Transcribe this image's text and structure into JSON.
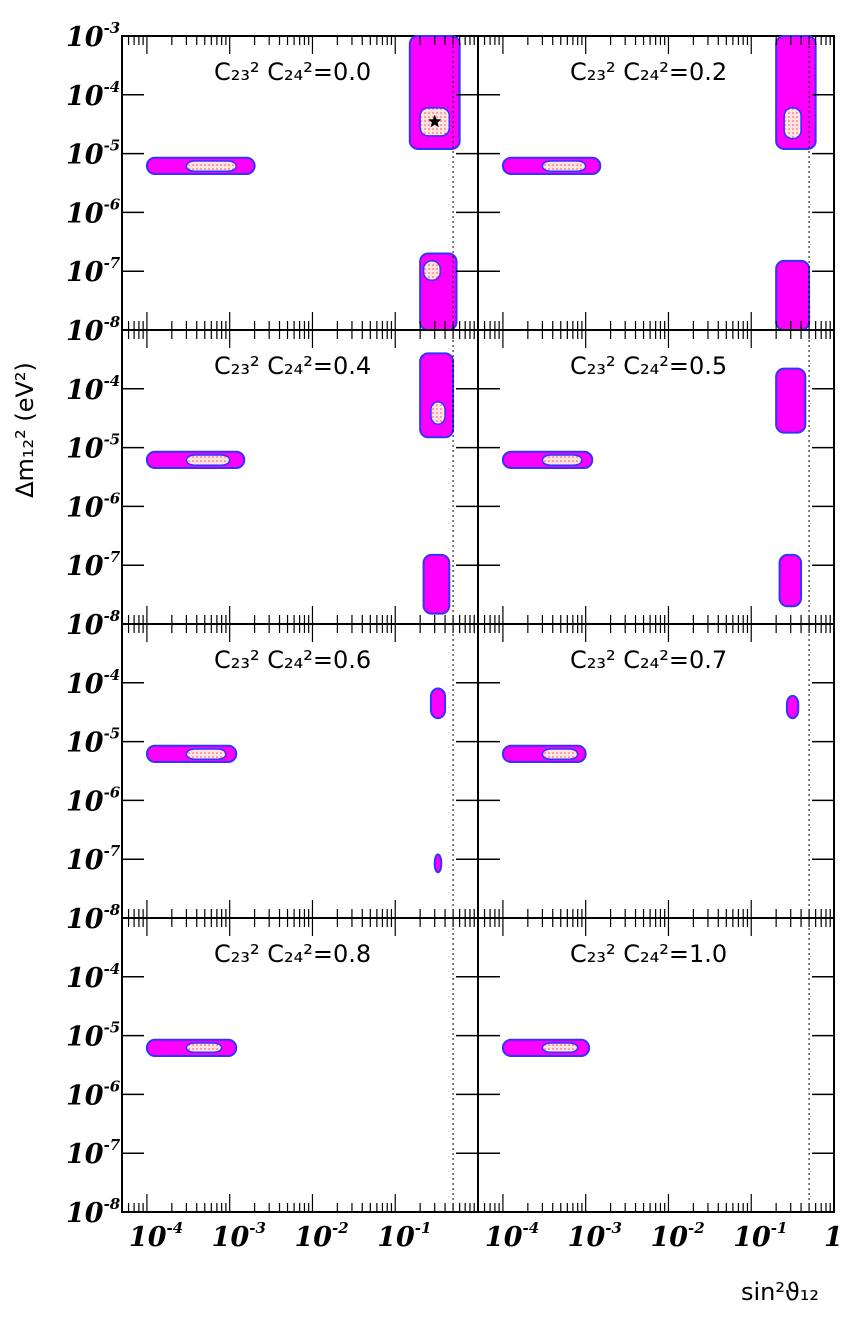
{
  "colors": {
    "outer_region": "#ff00ff",
    "outer_border": "#3333ff",
    "inner_region": "#ffd8d8",
    "inner_dots": "#ff4d4d",
    "axes": "#000000"
  },
  "axes": {
    "x_label": "sin²ϑ₁₂",
    "y_label": "Δm₁₂² (eV²)",
    "x_scale": "log",
    "y_scale": "log",
    "x_ticks": [
      {
        "base": "10",
        "exp": "-4"
      },
      {
        "base": "10",
        "exp": "-3"
      },
      {
        "base": "10",
        "exp": "-2"
      },
      {
        "base": "10",
        "exp": "-1"
      },
      {
        "base": "1",
        "exp": ""
      }
    ],
    "y_ticks": [
      {
        "base": "10",
        "exp": "-3"
      },
      {
        "base": "10",
        "exp": "-4"
      },
      {
        "base": "10",
        "exp": "-5"
      },
      {
        "base": "10",
        "exp": "-6"
      },
      {
        "base": "10",
        "exp": "-7"
      },
      {
        "base": "10",
        "exp": "-8"
      }
    ]
  },
  "chart_data": {
    "type": "scatter",
    "xlabel": "sin²ϑ₁₂",
    "ylabel": "Δm₁₂² (eV²)",
    "xlim": [
      5e-05,
      1
    ],
    "ylim": [
      1e-08,
      0.001
    ],
    "x_scale": "log",
    "y_scale": "log",
    "grid": false,
    "vertical_reference_line": {
      "x": 0.5,
      "style": "dotted"
    },
    "best_fit_marker": {
      "panel": "0.0",
      "x": 0.3,
      "y": 3.5e-05
    },
    "panels": [
      {
        "label": "C₂₃² C₂₄²=0.0",
        "value": "0.0",
        "regions": [
          {
            "name": "small-mixing",
            "x_range": [
              0.0001,
              0.002
            ],
            "y_range": [
              4.5e-06,
              8.5e-06
            ],
            "inner": {
              "x_range": [
                0.0003,
                0.0012
              ],
              "y_range": [
                5e-06,
                7.5e-06
              ]
            }
          },
          {
            "name": "large-mixing-high",
            "x_range": [
              0.15,
              0.6
            ],
            "y_range": [
              1.2e-05,
              0.001
            ],
            "inner": {
              "x_range": [
                0.2,
                0.45
              ],
              "y_range": [
                2e-05,
                6e-05
              ]
            }
          },
          {
            "name": "large-mixing-low",
            "x_range": [
              0.2,
              0.55
            ],
            "y_range": [
              1e-08,
              2e-07
            ],
            "inner": {
              "x_range": [
                0.22,
                0.35
              ],
              "y_range": [
                7e-08,
                1.5e-07
              ]
            }
          }
        ]
      },
      {
        "label": "C₂₃² C₂₄²=0.2",
        "value": "0.2",
        "regions": [
          {
            "name": "small-mixing",
            "x_range": [
              0.0001,
              0.0015
            ],
            "y_range": [
              4.5e-06,
              8.5e-06
            ],
            "inner": {
              "x_range": [
                0.0003,
                0.001
              ],
              "y_range": [
                5e-06,
                7.5e-06
              ]
            }
          },
          {
            "name": "large-mixing-high",
            "x_range": [
              0.2,
              0.6
            ],
            "y_range": [
              1.2e-05,
              0.001
            ],
            "inner": {
              "x_range": [
                0.25,
                0.4
              ],
              "y_range": [
                1.8e-05,
                6e-05
              ]
            }
          },
          {
            "name": "large-mixing-low",
            "x_range": [
              0.2,
              0.5
            ],
            "y_range": [
              1e-08,
              1.5e-07
            ],
            "inner": null
          }
        ]
      },
      {
        "label": "C₂₃² C₂₄²=0.4",
        "value": "0.4",
        "regions": [
          {
            "name": "small-mixing",
            "x_range": [
              0.0001,
              0.0015
            ],
            "y_range": [
              4.5e-06,
              8.5e-06
            ],
            "inner": {
              "x_range": [
                0.0003,
                0.001
              ],
              "y_range": [
                5e-06,
                7.5e-06
              ]
            }
          },
          {
            "name": "large-mixing-high",
            "x_range": [
              0.2,
              0.5
            ],
            "y_range": [
              1.5e-05,
              0.0004
            ],
            "inner": {
              "x_range": [
                0.27,
                0.4
              ],
              "y_range": [
                2.5e-05,
                6e-05
              ]
            }
          },
          {
            "name": "large-mixing-low",
            "x_range": [
              0.22,
              0.45
            ],
            "y_range": [
              1.5e-08,
              1.5e-07
            ],
            "inner": null
          }
        ]
      },
      {
        "label": "C₂₃² C₂₄²=0.5",
        "value": "0.5",
        "regions": [
          {
            "name": "small-mixing",
            "x_range": [
              0.0001,
              0.0012
            ],
            "y_range": [
              4.5e-06,
              8.5e-06
            ],
            "inner": {
              "x_range": [
                0.0003,
                0.0009
              ],
              "y_range": [
                5e-06,
                7.5e-06
              ]
            }
          },
          {
            "name": "large-mixing-high",
            "x_range": [
              0.2,
              0.45
            ],
            "y_range": [
              1.8e-05,
              0.00022
            ],
            "inner": null
          },
          {
            "name": "large-mixing-low",
            "x_range": [
              0.22,
              0.4
            ],
            "y_range": [
              2e-08,
              1.5e-07
            ],
            "inner": null
          }
        ]
      },
      {
        "label": "C₂₃² C₂₄²=0.6",
        "value": "0.6",
        "regions": [
          {
            "name": "small-mixing",
            "x_range": [
              0.0001,
              0.0012
            ],
            "y_range": [
              4.5e-06,
              8.5e-06
            ],
            "inner": {
              "x_range": [
                0.0003,
                0.0009
              ],
              "y_range": [
                5e-06,
                7.5e-06
              ]
            }
          },
          {
            "name": "large-mixing-high",
            "x_range": [
              0.27,
              0.4
            ],
            "y_range": [
              2.5e-05,
              8e-05
            ],
            "inner": null
          },
          {
            "name": "large-mixing-low",
            "x_range": [
              0.3,
              0.36
            ],
            "y_range": [
              6e-08,
              1.2e-07
            ],
            "inner": null
          }
        ]
      },
      {
        "label": "C₂₃² C₂₄²=0.7",
        "value": "0.7",
        "regions": [
          {
            "name": "small-mixing",
            "x_range": [
              0.0001,
              0.001
            ],
            "y_range": [
              4.5e-06,
              8.5e-06
            ],
            "inner": {
              "x_range": [
                0.0003,
                0.0008
              ],
              "y_range": [
                5e-06,
                7.5e-06
              ]
            }
          },
          {
            "name": "large-mixing-high",
            "x_range": [
              0.27,
              0.37
            ],
            "y_range": [
              2.5e-05,
              6e-05
            ],
            "inner": null
          }
        ]
      },
      {
        "label": "C₂₃² C₂₄²=0.8",
        "value": "0.8",
        "regions": [
          {
            "name": "small-mixing",
            "x_range": [
              0.0001,
              0.0012
            ],
            "y_range": [
              4.5e-06,
              8.5e-06
            ],
            "inner": {
              "x_range": [
                0.0003,
                0.0008
              ],
              "y_range": [
                5.2e-06,
                7.5e-06
              ]
            }
          }
        ]
      },
      {
        "label": "C₂₃² C₂₄²=1.0",
        "value": "1.0",
        "regions": [
          {
            "name": "small-mixing",
            "x_range": [
              0.0001,
              0.0011
            ],
            "y_range": [
              4.5e-06,
              8.5e-06
            ],
            "inner": {
              "x_range": [
                0.0003,
                0.0008
              ],
              "y_range": [
                5.2e-06,
                7.5e-06
              ]
            }
          }
        ]
      }
    ]
  }
}
